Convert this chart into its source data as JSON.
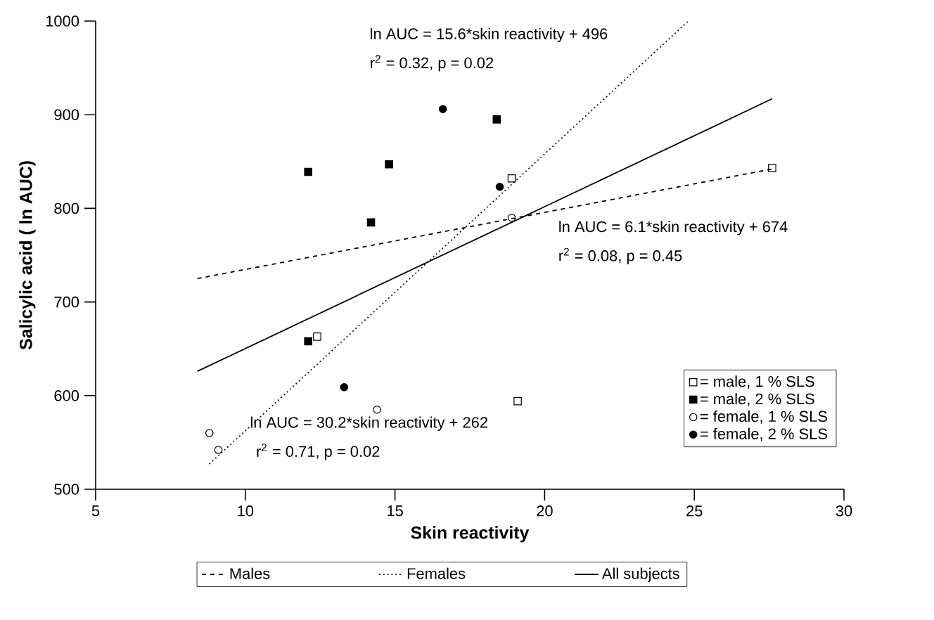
{
  "chart_data": {
    "type": "scatter",
    "xlabel": "Skin reactivity",
    "ylabel": "Salicylic acid ( ln AUC)",
    "xlim": [
      5,
      30
    ],
    "xticks": [
      5,
      10,
      15,
      20,
      25,
      30
    ],
    "ylim": [
      500,
      1000
    ],
    "yticks": [
      500,
      600,
      700,
      800,
      900,
      1000
    ],
    "grid": false,
    "legend": "right",
    "series": [
      {
        "name": "= male, 1 % SLS",
        "marker": "square",
        "color": "#ffffff",
        "x": [
          12.4,
          18.9,
          19.1,
          27.6
        ],
        "values": [
          663,
          832,
          594,
          843
        ]
      },
      {
        "name": "= male, 2 % SLS",
        "marker": "square",
        "color": "#000000",
        "x": [
          12.1,
          12.1,
          14.2,
          14.8,
          18.4
        ],
        "values": [
          839,
          658,
          785,
          847,
          895
        ]
      },
      {
        "name": "= female, 1 % SLS",
        "marker": "circle",
        "color": "#ffffff",
        "x": [
          8.8,
          9.1,
          14.4,
          18.9
        ],
        "values": [
          560,
          542,
          585,
          790
        ]
      },
      {
        "name": "= female, 2 % SLS",
        "marker": "circle",
        "color": "#000000",
        "x": [
          13.3,
          16.6,
          18.5
        ],
        "values": [
          609,
          906,
          823
        ]
      },
      {
        "name": "Males",
        "type": "line",
        "line_style": "dashed",
        "marker": "none",
        "color": "#000000",
        "x": [
          8.4,
          27.6
        ],
        "values": [
          725,
          842
        ]
      },
      {
        "name": "Females",
        "type": "line",
        "line_style": "dotted",
        "marker": "none",
        "color": "#000000",
        "x": [
          8.8,
          24.8
        ],
        "values": [
          527,
          1000
        ]
      },
      {
        "name": "All subjects",
        "type": "line",
        "line_style": "solid",
        "marker": "none",
        "color": "#000000",
        "x": [
          8.4,
          27.6
        ],
        "values": [
          626,
          917
        ]
      }
    ],
    "annotations": [
      "ln AUC = 15.6*skin reactivity + 496",
      "r$^{2}$ = 0.32, p = 0.02",
      "ln AUC = 6.1*skin reactivity + 674",
      "r$^{2}$ = 0.08, p = 0.45",
      "ln AUC = 30.2*skin reactivity + 262",
      "r$^{2}$ = 0.71, p = 0.02"
    ]
  }
}
